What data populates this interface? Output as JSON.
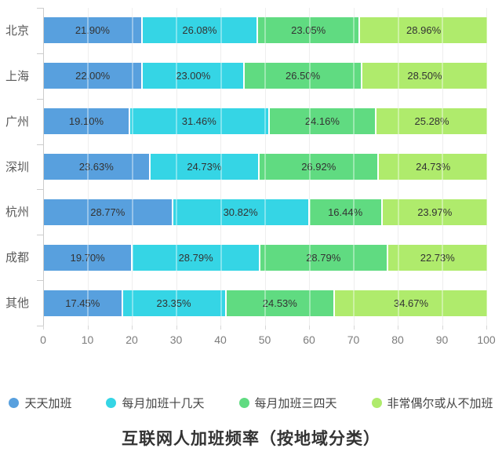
{
  "title": "互联网人加班频率（按地域分类）",
  "chart_data": {
    "type": "bar",
    "orientation": "horizontal",
    "stacked": true,
    "title": "互联网人加班频率（按地域分类）",
    "xlabel": "",
    "ylabel": "",
    "xlim": [
      0,
      100
    ],
    "x_ticks": [
      0,
      10,
      20,
      30,
      40,
      50,
      60,
      70,
      80,
      90,
      100
    ],
    "grid": true,
    "legend_position": "bottom",
    "value_label_suffix": "%",
    "categories": [
      "北京",
      "上海",
      "广州",
      "深圳",
      "杭州",
      "成都",
      "其他"
    ],
    "series": [
      {
        "name": "天天加班",
        "color": "#58A0DE",
        "values": [
          21.9,
          22.0,
          19.1,
          23.63,
          28.77,
          19.7,
          17.45
        ],
        "labels": [
          "21.90%",
          "22.00%",
          "19.10%",
          "23.63%",
          "28.77%",
          "19.70%",
          "17.45%"
        ]
      },
      {
        "name": "每月加班十几天",
        "color": "#35D5E5",
        "values": [
          26.08,
          23.0,
          31.46,
          24.73,
          30.82,
          28.79,
          23.35
        ],
        "labels": [
          "26.08%",
          "23.00%",
          "31.46%",
          "24.73%",
          "30.82%",
          "28.79%",
          "23.35%"
        ]
      },
      {
        "name": "每月加班三四天",
        "color": "#60DB81",
        "values": [
          23.05,
          26.5,
          24.16,
          26.92,
          16.44,
          28.79,
          24.53
        ],
        "labels": [
          "23.05%",
          "26.50%",
          "24.16%",
          "26.92%",
          "16.44%",
          "28.79%",
          "24.53%"
        ]
      },
      {
        "name": "非常偶尔或从不加班",
        "color": "#AFEB6C",
        "values": [
          28.96,
          28.5,
          25.28,
          24.73,
          23.97,
          22.73,
          34.67
        ],
        "labels": [
          "28.96%",
          "28.50%",
          "25.28%",
          "24.73%",
          "23.97%",
          "22.73%",
          "34.67%"
        ]
      }
    ],
    "colors": {
      "grid": "#e4e4e4",
      "axis": "#cccccc",
      "bar_label_text": "#333333",
      "category_label_text": "#5a5a5a",
      "tick_label_text": "#7c7c7c"
    }
  }
}
